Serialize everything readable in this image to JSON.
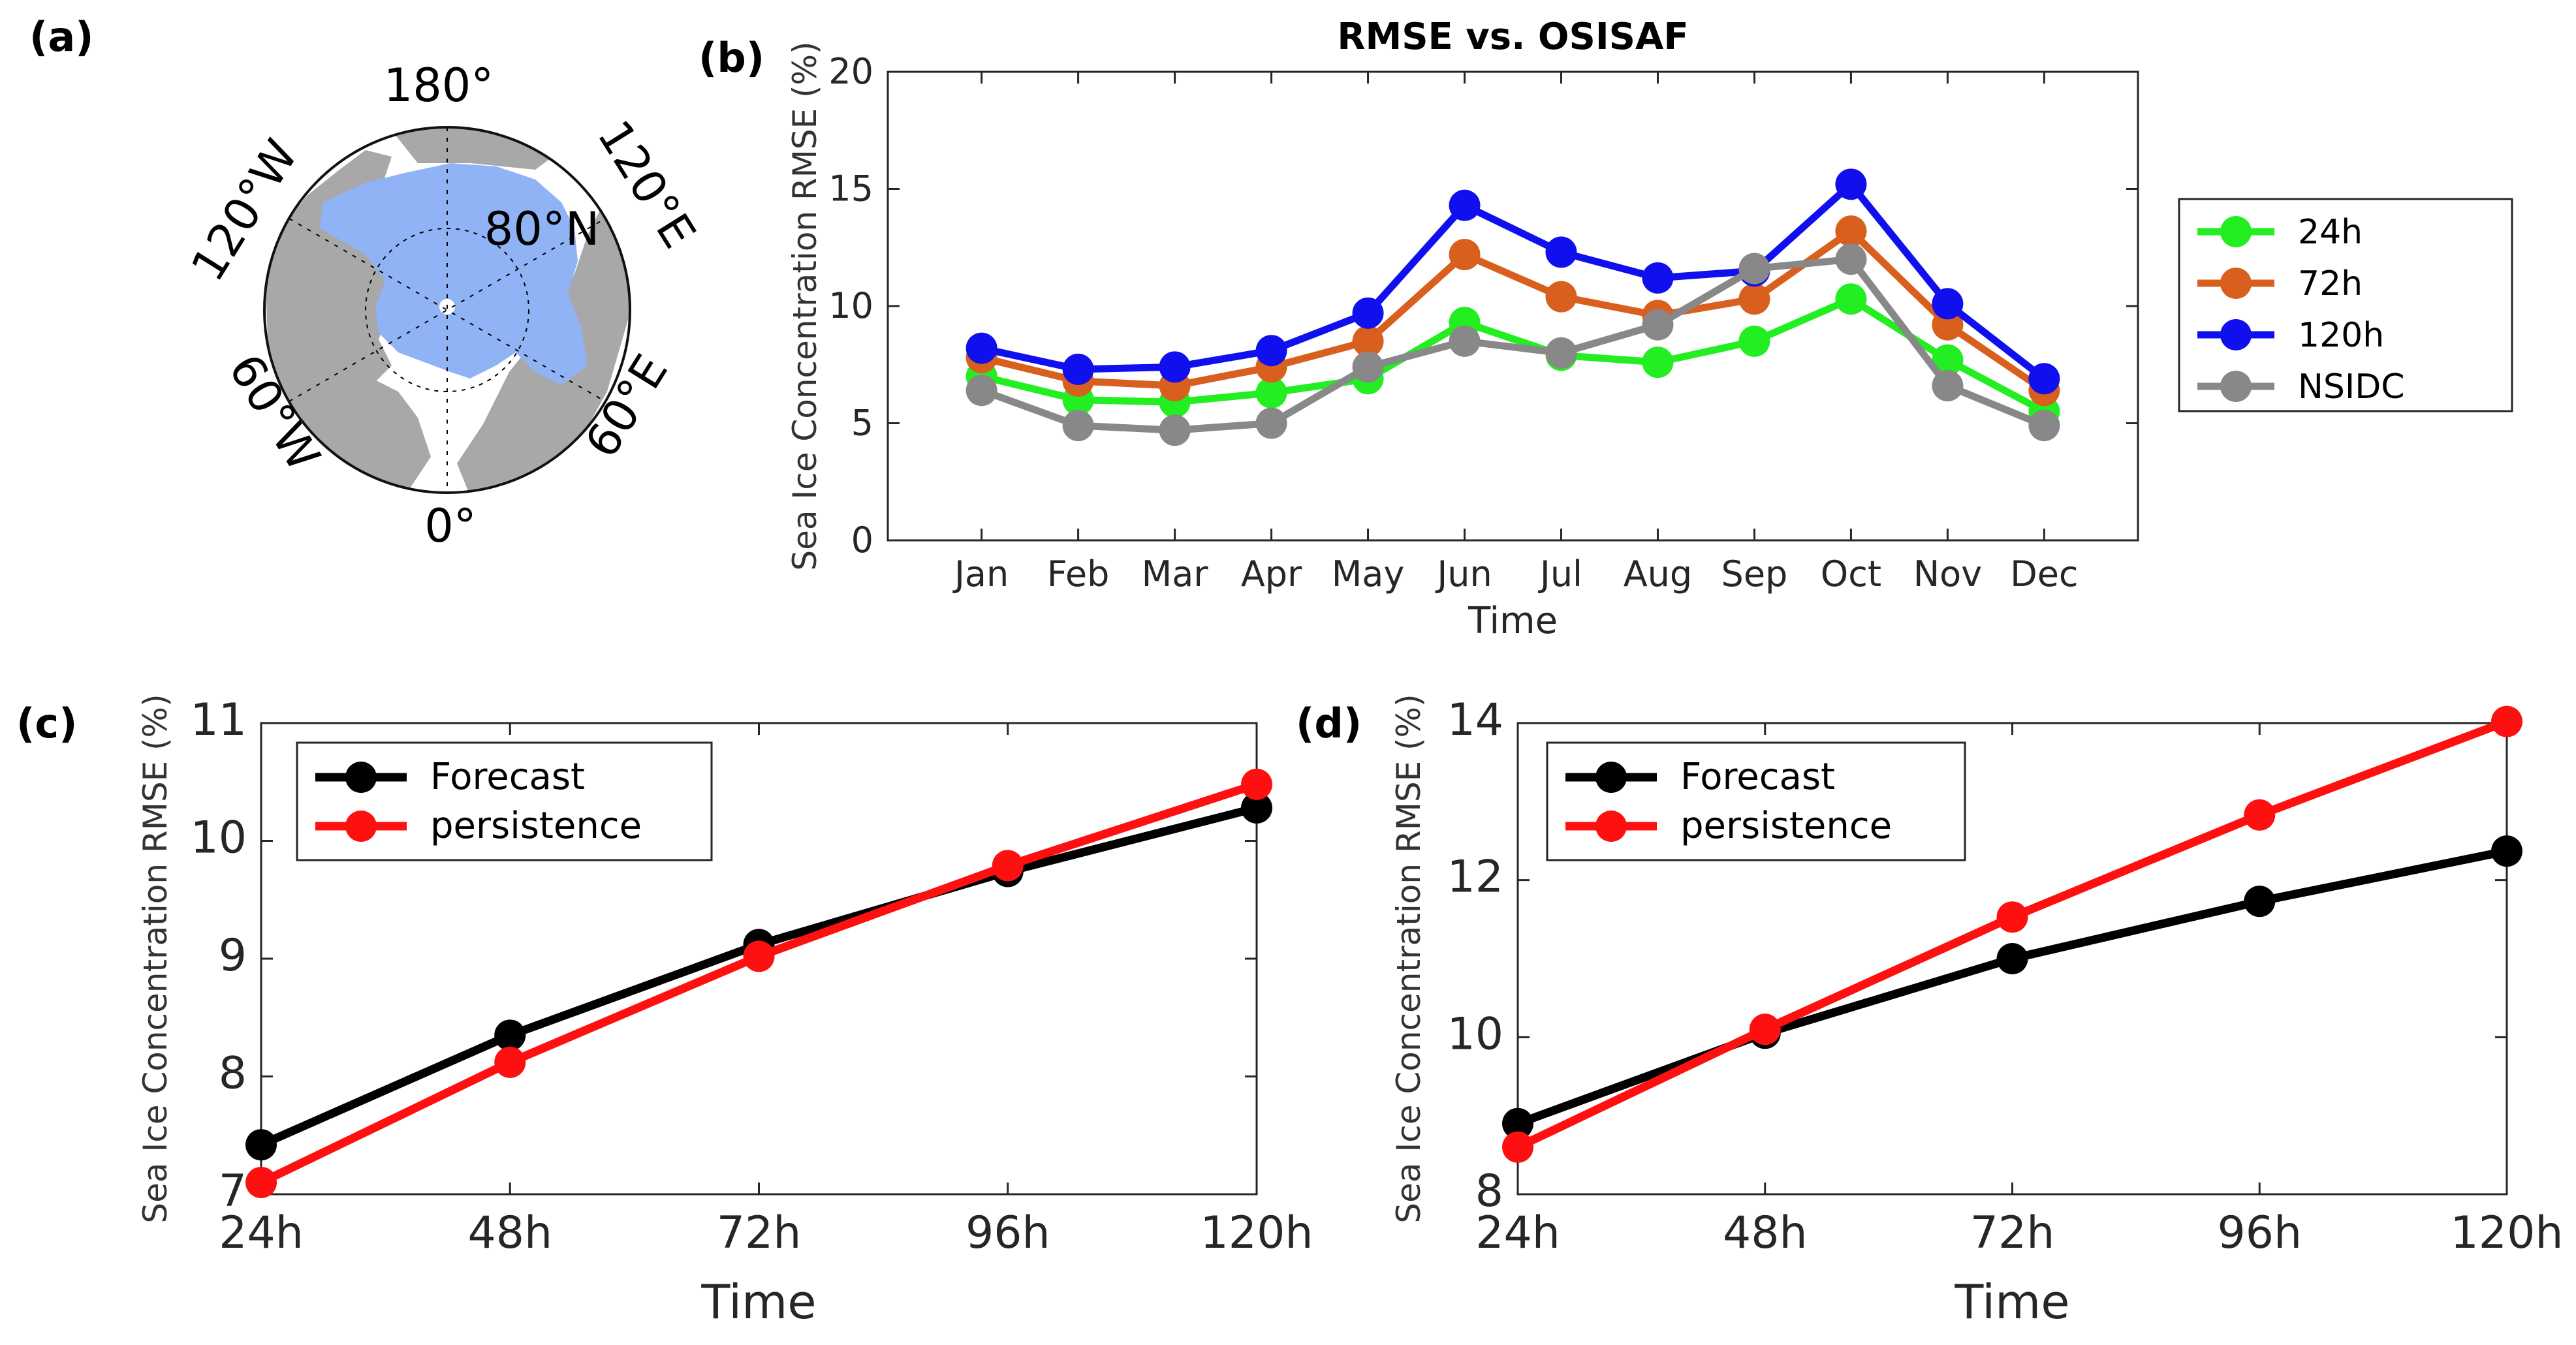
{
  "panels": {
    "a": "(a)",
    "b": "(b)",
    "c": "(c)",
    "d": "(d)"
  },
  "map": {
    "labels": [
      "180°",
      "120°E",
      "60°E",
      "0°",
      "60°W",
      "120°W",
      "80°N"
    ],
    "colors": {
      "ocean": "#ffffff",
      "land": "#a8a8a8",
      "ice": "#8fb3f5"
    }
  },
  "chart_data": [
    {
      "id": "b",
      "type": "line",
      "title": "RMSE vs. OSISAF",
      "xlabel": "Time",
      "ylabel": "Sea Ice Concentration RMSE (%)",
      "categories": [
        "Jan",
        "Feb",
        "Mar",
        "Apr",
        "May",
        "Jun",
        "Jul",
        "Aug",
        "Sep",
        "Oct",
        "Nov",
        "Dec"
      ],
      "ylim": [
        0,
        20
      ],
      "yticks": [
        0,
        5,
        10,
        15,
        20
      ],
      "legend_position": "outside-right",
      "series": [
        {
          "name": "24h",
          "color": "#22ee22",
          "values": [
            7.0,
            6.0,
            5.9,
            6.3,
            6.9,
            9.3,
            7.9,
            7.6,
            8.5,
            10.3,
            7.7,
            5.5
          ]
        },
        {
          "name": "72h",
          "color": "#d95f1e",
          "values": [
            7.8,
            6.8,
            6.6,
            7.4,
            8.5,
            12.2,
            10.4,
            9.6,
            10.3,
            13.2,
            9.2,
            6.4
          ]
        },
        {
          "name": "120h",
          "color": "#1010ee",
          "values": [
            8.2,
            7.3,
            7.4,
            8.1,
            9.7,
            14.3,
            12.3,
            11.2,
            11.5,
            15.2,
            10.1,
            6.9
          ]
        },
        {
          "name": "NSIDC",
          "color": "#888888",
          "values": [
            6.4,
            4.9,
            4.7,
            5.0,
            7.4,
            8.5,
            8.0,
            9.2,
            11.6,
            12.0,
            6.6,
            4.9
          ]
        }
      ]
    },
    {
      "id": "c",
      "type": "line",
      "title": "",
      "xlabel": "Time",
      "ylabel": "Sea Ice Concentration RMSE (%)",
      "categories": [
        "24h",
        "48h",
        "72h",
        "96h",
        "120h"
      ],
      "ylim": [
        7,
        11
      ],
      "yticks": [
        7,
        8,
        9,
        10,
        11
      ],
      "legend_position": "top-left",
      "series": [
        {
          "name": "Forecast",
          "color": "#000000",
          "values": [
            7.42,
            8.35,
            9.12,
            9.74,
            10.28
          ]
        },
        {
          "name": "persistence",
          "color": "#ff1010",
          "values": [
            7.1,
            8.12,
            9.02,
            9.79,
            10.48
          ]
        }
      ]
    },
    {
      "id": "d",
      "type": "line",
      "title": "",
      "xlabel": "Time",
      "ylabel": "Sea Ice Concentration RMSE (%)",
      "categories": [
        "24h",
        "48h",
        "72h",
        "96h",
        "120h"
      ],
      "ylim": [
        8,
        14
      ],
      "yticks": [
        8,
        10,
        12,
        14
      ],
      "legend_position": "top-left",
      "series": [
        {
          "name": "Forecast",
          "color": "#000000",
          "values": [
            8.9,
            10.05,
            11.0,
            11.73,
            12.37
          ]
        },
        {
          "name": "persistence",
          "color": "#ff1010",
          "values": [
            8.6,
            10.1,
            11.53,
            12.83,
            14.02
          ]
        }
      ]
    }
  ]
}
